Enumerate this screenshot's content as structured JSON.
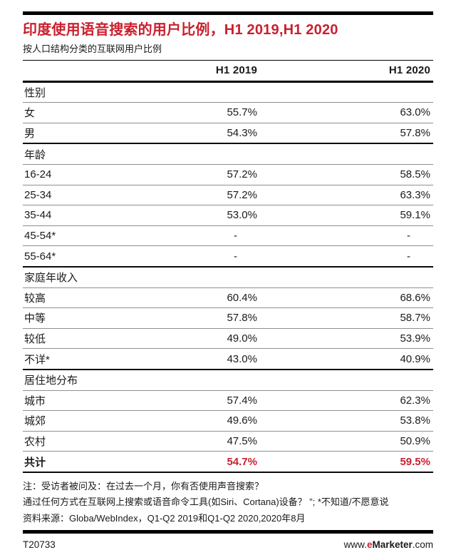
{
  "colors": {
    "accent_red": "#c9202e",
    "rule_gray": "#8f8f8f",
    "bar_black": "#000000"
  },
  "chart_data": {
    "type": "table",
    "title": "印度使用语音搜索的用户比例，H1 2019,H1 2020",
    "subtitle": "按人口结构分类的互联网用户比例",
    "columns": [
      "H1 2019",
      "H1 2020"
    ],
    "groups": [
      {
        "label": "性别",
        "rows": [
          {
            "label": "女",
            "v1": "55.7%",
            "v2": "63.0%"
          },
          {
            "label": "男",
            "v1": "54.3%",
            "v2": "57.8%"
          }
        ]
      },
      {
        "label": "年龄",
        "rows": [
          {
            "label": "16-24",
            "v1": "57.2%",
            "v2": "58.5%"
          },
          {
            "label": "25-34",
            "v1": "57.2%",
            "v2": "63.3%"
          },
          {
            "label": "35-44",
            "v1": "53.0%",
            "v2": "59.1%"
          },
          {
            "label": "45-54*",
            "v1": "-",
            "v2": "-"
          },
          {
            "label": "55-64*",
            "v1": "-",
            "v2": "-"
          }
        ]
      },
      {
        "label": "家庭年收入",
        "rows": [
          {
            "label": "较高",
            "v1": "60.4%",
            "v2": "68.6%"
          },
          {
            "label": "中等",
            "v1": "57.8%",
            "v2": "58.7%"
          },
          {
            "label": "较低",
            "v1": "49.0%",
            "v2": "53.9%"
          },
          {
            "label": "不详*",
            "v1": "43.0%",
            "v2": "40.9%"
          }
        ]
      },
      {
        "label": "居住地分布",
        "rows": [
          {
            "label": "城市",
            "v1": "57.4%",
            "v2": "62.3%"
          },
          {
            "label": "城郊",
            "v1": "49.6%",
            "v2": "53.8%"
          },
          {
            "label": "农村",
            "v1": "47.5%",
            "v2": "50.9%"
          }
        ]
      }
    ],
    "total": {
      "label": "共计",
      "v1": "54.7%",
      "v2": "59.5%"
    },
    "notes": [
      "注：受访者被问及：在过去一个月，你有否使用声音搜索？",
      "通过任何方式在互联网上搜索或语音命令工具(如Siri、Cortana)设备？ ”; *不知道/不愿意说",
      "资料来源：Globa/WebIndex，Q1-Q2 2019和Q1-Q2 2020,2020年8月"
    ],
    "chart_id": "T20733"
  },
  "footer": {
    "id": "T20733",
    "site_prefix": "www.",
    "site_e": "e",
    "site_brand": "Marketer",
    "site_suffix": ".com"
  }
}
